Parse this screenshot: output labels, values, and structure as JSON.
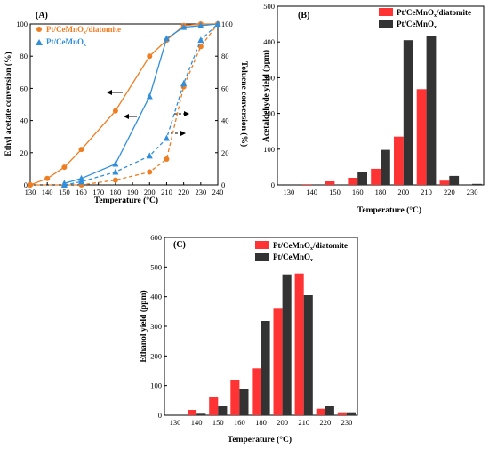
{
  "colors": {
    "orange": "#ef7d22",
    "blue": "#2f8fdc",
    "red": "#ff3333",
    "black": "#333333"
  },
  "chart_data": [
    {
      "panel": "(A)",
      "type": "line",
      "xlabel": "Temperature (°C)",
      "ylabel": "Ethyl acetate conversion (%)",
      "y2label": "Toluene conversion (%)",
      "xlim": [
        130,
        240
      ],
      "ylim": [
        0,
        100
      ],
      "xticks": [
        130,
        140,
        150,
        160,
        170,
        180,
        190,
        200,
        210,
        220,
        230,
        240
      ],
      "yticks": [
        0,
        20,
        40,
        60,
        80,
        100
      ],
      "y2ticks": [
        0,
        20,
        40,
        60,
        80,
        100
      ],
      "legend_position": "top-left",
      "series": [
        {
          "name": "Pt/CeMnOx/diatomite",
          "axis": "left",
          "style": "solid",
          "marker": "circle",
          "color": "#ef7d22",
          "x": [
            130,
            140,
            150,
            160,
            180,
            200,
            210,
            220,
            230,
            240
          ],
          "y": [
            0,
            4,
            11,
            22,
            46,
            80,
            90,
            99,
            100,
            100
          ]
        },
        {
          "name": "Pt/CeMnOx",
          "axis": "left",
          "style": "solid",
          "marker": "triangle",
          "color": "#2f8fdc",
          "x": [
            150,
            160,
            180,
            200,
            210,
            220,
            230,
            240
          ],
          "y": [
            1,
            4,
            13,
            55,
            91,
            98,
            99,
            100
          ]
        },
        {
          "name": "",
          "axis": "right",
          "style": "dashed",
          "marker": "circle",
          "color": "#ef7d22",
          "x": [
            130,
            160,
            180,
            200,
            210,
            220,
            230,
            240
          ],
          "y": [
            0,
            0,
            3,
            8,
            16,
            61,
            86,
            100
          ]
        },
        {
          "name": "",
          "axis": "right",
          "style": "dashed",
          "marker": "triangle",
          "color": "#2f8fdc",
          "x": [
            150,
            160,
            180,
            200,
            210,
            220,
            230,
            240
          ],
          "y": [
            0,
            2,
            8,
            18,
            29,
            63,
            90,
            100
          ]
        }
      ]
    },
    {
      "panel": "(B)",
      "type": "bar",
      "xlabel": "Temperature (°C)",
      "ylabel": "Acetaldehyde yield (ppm)",
      "categories": [
        "130",
        "140",
        "150",
        "160",
        "180",
        "200",
        "210",
        "220",
        "230"
      ],
      "ylim": [
        0,
        500
      ],
      "yticks": [
        0,
        100,
        200,
        300,
        400,
        500
      ],
      "legend_position": "top-right",
      "series": [
        {
          "name": "Pt/CeMnOx/diatomite",
          "color": "#ff3333",
          "values": [
            0,
            2,
            10,
            20,
            45,
            135,
            268,
            12,
            0
          ]
        },
        {
          "name": "Pt/CeMnOx",
          "color": "#333333",
          "values": [
            0,
            0,
            0,
            35,
            98,
            405,
            418,
            25,
            3
          ]
        }
      ]
    },
    {
      "panel": "(C)",
      "type": "bar",
      "xlabel": "Temperature (°C)",
      "ylabel": "Ethanol yield (ppm)",
      "categories": [
        "130",
        "140",
        "150",
        "160",
        "180",
        "200",
        "210",
        "220",
        "230"
      ],
      "ylim": [
        0,
        600
      ],
      "yticks": [
        0,
        100,
        200,
        300,
        400,
        500,
        600
      ],
      "legend_position": "top-right",
      "series": [
        {
          "name": "Pt/CeMnOx/diatomite",
          "color": "#ff3333",
          "values": [
            0,
            18,
            60,
            120,
            158,
            362,
            478,
            22,
            10
          ]
        },
        {
          "name": "Pt/CeMnOx",
          "color": "#333333",
          "values": [
            0,
            5,
            30,
            87,
            318,
            475,
            405,
            30,
            10
          ]
        }
      ]
    }
  ]
}
